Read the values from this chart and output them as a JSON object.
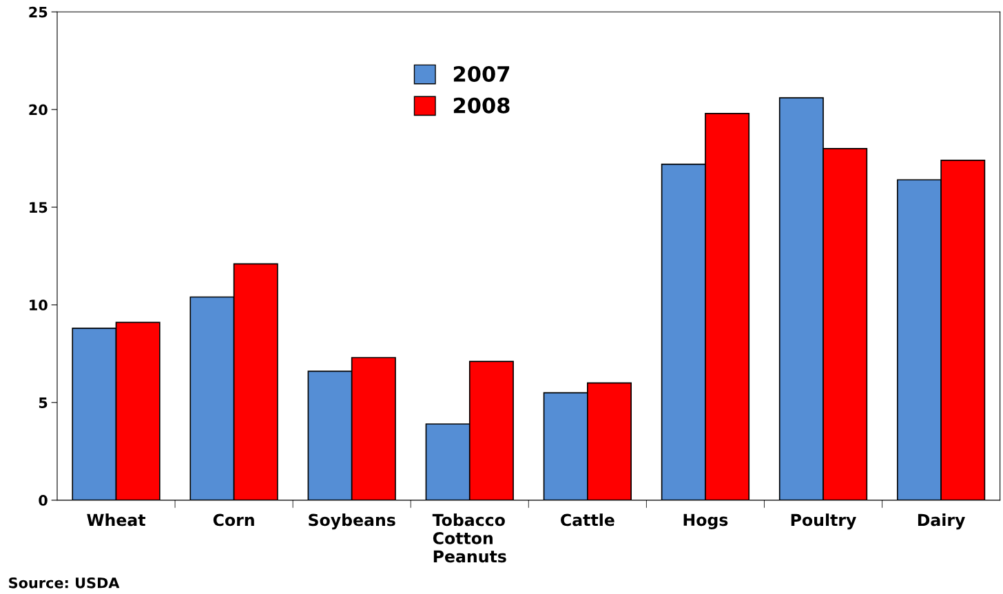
{
  "chart_data": {
    "type": "bar",
    "categories": [
      "Wheat",
      "Corn",
      "Soybeans",
      "Tobacco\nCotton\nPeanuts",
      "Cattle",
      "Hogs",
      "Poultry",
      "Dairy"
    ],
    "series": [
      {
        "name": "2007",
        "color": "#558ed5",
        "values": [
          8.8,
          10.4,
          6.6,
          3.9,
          5.5,
          17.2,
          20.6,
          16.4
        ]
      },
      {
        "name": "2008",
        "color": "#ff0000",
        "values": [
          9.1,
          12.1,
          7.3,
          7.1,
          6.0,
          19.8,
          18.0,
          17.4
        ]
      }
    ],
    "ylim": [
      0,
      25
    ],
    "yticks": [
      0,
      5,
      10,
      15,
      20,
      25
    ],
    "grid": false,
    "legend": "top",
    "annotations": [
      "Source: USDA"
    ]
  }
}
